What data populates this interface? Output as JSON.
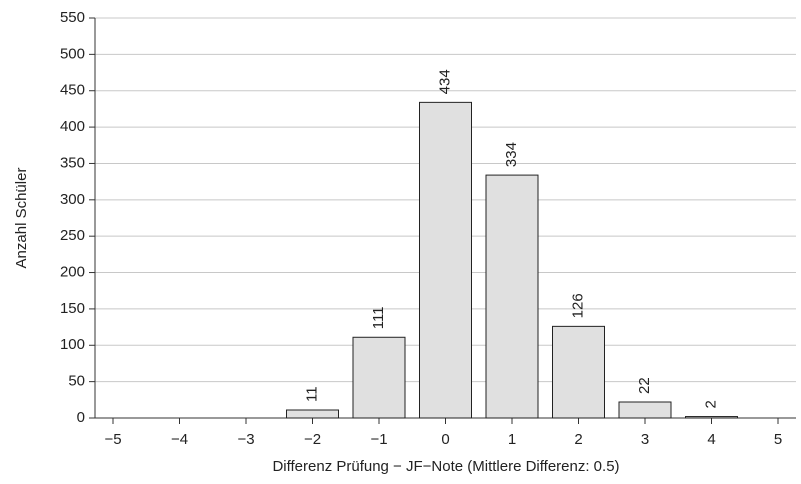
{
  "chart_data": {
    "type": "bar",
    "x_label": "Differenz Prüfung − JF−Note (Mittlere Differenz: 0.5)",
    "y_label": "Anzahl Schüler",
    "categories": [
      "−5",
      "−4",
      "−3",
      "−2",
      "−1",
      "0",
      "1",
      "2",
      "3",
      "4",
      "5"
    ],
    "values": [
      null,
      null,
      null,
      11,
      111,
      434,
      334,
      126,
      22,
      2,
      null
    ],
    "color": "#e0e0e0",
    "ylim": [
      0,
      550
    ],
    "yticks": [
      0,
      50,
      100,
      150,
      200,
      250,
      300,
      350,
      400,
      450,
      500,
      550
    ],
    "grid": true
  }
}
